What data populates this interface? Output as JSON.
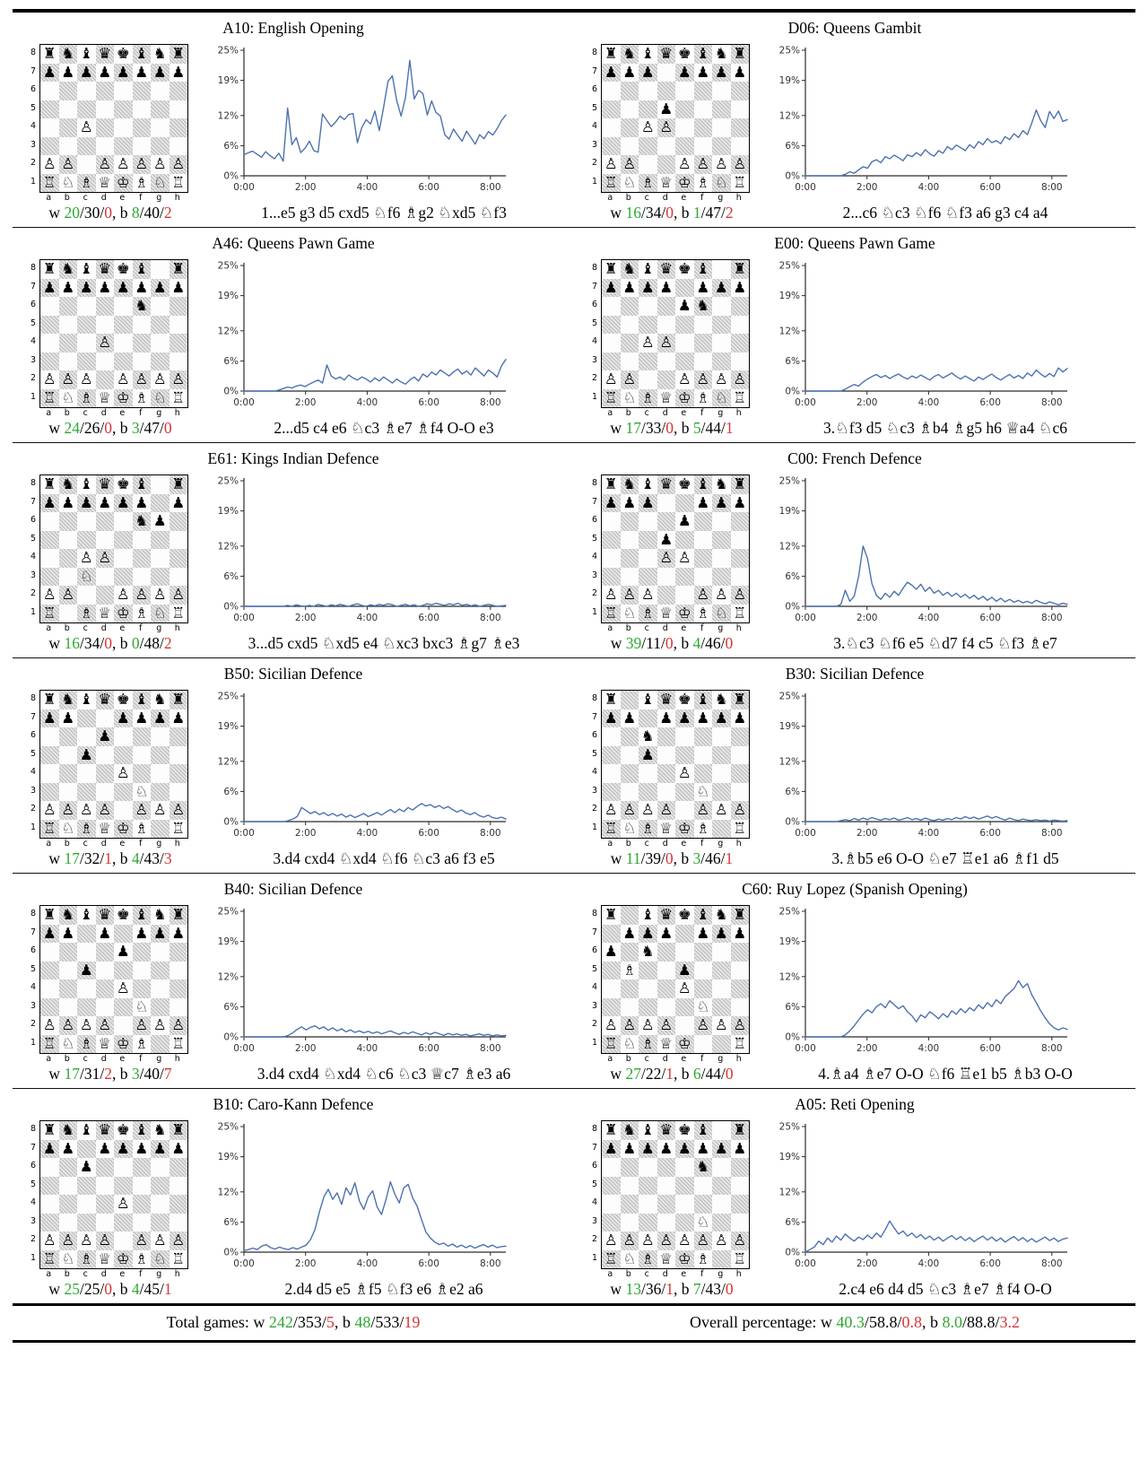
{
  "colors": {
    "win": "#2fa832",
    "loss": "#d83434",
    "line": "#4d72b0",
    "axis": "#2b2b2b"
  },
  "stats_format": {
    "w_prefix": "w ",
    "b_prefix": ", b ",
    "sep": "/"
  },
  "axis": {
    "y_tick_labels": [
      "0%",
      "6%",
      "12%",
      "19%",
      "25%"
    ],
    "y_tick_values": [
      0,
      6,
      12,
      19,
      25
    ],
    "x_tick_labels": [
      "0:00",
      "2:00",
      "4:00",
      "6:00",
      "8:00"
    ],
    "x_tick_values": [
      0,
      120,
      240,
      360,
      480
    ],
    "x_max": 510,
    "y_max": 25
  },
  "panels": [
    {
      "title": "A10: English Opening",
      "fen": "rnbqkbnr/pppppppp/8/8/2P5/8/PP1PPPPP/RNBQKBNR",
      "stats": {
        "w": [
          "20",
          "30",
          "0"
        ],
        "b": [
          "8",
          "40",
          "2"
        ]
      },
      "moves": "1...e5 g3 d5 cxd5 ♘f6 ♗g2 ♘xd5 ♘f3"
    },
    {
      "title": "D06: Queens Gambit",
      "fen": "rnbqkbnr/ppp1pppp/8/3p4/2PP4/8/PP2PPPP/RNBQKBNR",
      "stats": {
        "w": [
          "16",
          "34",
          "0"
        ],
        "b": [
          "1",
          "47",
          "2"
        ]
      },
      "moves": "2...c6 ♘c3 ♘f6 ♘f3 a6 g3 c4 a4"
    },
    {
      "title": "A46: Queens Pawn Game",
      "fen": "rnbqkb1r/pppppppp/5n2/8/3P4/8/PPP1PPPP/RNBQKBNR",
      "stats": {
        "w": [
          "24",
          "26",
          "0"
        ],
        "b": [
          "3",
          "47",
          "0"
        ]
      },
      "moves": "2...d5 c4 e6 ♘c3 ♗e7 ♗f4 O-O e3"
    },
    {
      "title": "E00: Queens Pawn Game",
      "fen": "rnbqkb1r/pppp1ppp/4pn2/8/2PP4/8/PP2PPPP/RNBQKBNR",
      "stats": {
        "w": [
          "17",
          "33",
          "0"
        ],
        "b": [
          "5",
          "44",
          "1"
        ]
      },
      "moves": "3.♘f3 d5 ♘c3 ♗b4 ♗g5 h6 ♕a4 ♘c6"
    },
    {
      "title": "E61: Kings Indian Defence",
      "fen": "rnbqkb1r/pppppp1p/5np1/8/2PP4/2N5/PP2PPPP/R1BQKBNR",
      "stats": {
        "w": [
          "16",
          "34",
          "0"
        ],
        "b": [
          "0",
          "48",
          "2"
        ]
      },
      "moves": "3...d5 cxd5 ♘xd5 e4 ♘xc3 bxc3 ♗g7 ♗e3"
    },
    {
      "title": "C00: French Defence",
      "fen": "rnbqkbnr/ppp2ppp/4p3/3p4/3PP3/8/PPP2PPP/RNBQKBNR",
      "stats": {
        "w": [
          "39",
          "11",
          "0"
        ],
        "b": [
          "4",
          "46",
          "0"
        ]
      },
      "moves": "3.♘c3 ♘f6 e5 ♘d7 f4 c5 ♘f3 ♗e7"
    },
    {
      "title": "B50: Sicilian Defence",
      "fen": "rnbqkbnr/pp2pppp/3p4/2p5/4P3/5N2/PPPP1PPP/RNBQKB1R",
      "stats": {
        "w": [
          "17",
          "32",
          "1"
        ],
        "b": [
          "4",
          "43",
          "3"
        ]
      },
      "moves": "3.d4 cxd4 ♘xd4 ♘f6 ♘c3 a6 f3 e5"
    },
    {
      "title": "B30: Sicilian Defence",
      "fen": "r1bqkbnr/pp1ppppp/2n5/2p5/4P3/5N2/PPPP1PPP/RNBQKB1R",
      "stats": {
        "w": [
          "11",
          "39",
          "0"
        ],
        "b": [
          "3",
          "46",
          "1"
        ]
      },
      "moves": "3.♗b5 e6 O-O ♘e7 ♖e1 a6 ♗f1 d5"
    },
    {
      "title": "B40: Sicilian Defence",
      "fen": "rnbqkbnr/pp1p1ppp/4p3/2p5/4P3/5N2/PPPP1PPP/RNBQKB1R",
      "stats": {
        "w": [
          "17",
          "31",
          "2"
        ],
        "b": [
          "3",
          "40",
          "7"
        ]
      },
      "moves": "3.d4 cxd4 ♘xd4 ♘c6 ♘c3 ♕c7 ♗e3 a6"
    },
    {
      "title": "C60: Ruy Lopez (Spanish Opening)",
      "fen": "r1bqkbnr/1ppp1ppp/p1n5/1B2p3/4P3/5N2/PPPP1PPP/RNBQK2R",
      "stats": {
        "w": [
          "27",
          "22",
          "1"
        ],
        "b": [
          "6",
          "44",
          "0"
        ]
      },
      "moves": "4.♗a4 ♗e7 O-O ♘f6 ♖e1 b5 ♗b3 O-O"
    },
    {
      "title": "B10: Caro-Kann Defence",
      "fen": "rnbqkbnr/pp1ppppp/2p5/8/4P3/8/PPPP1PPP/RNBQKBNR",
      "stats": {
        "w": [
          "25",
          "25",
          "0"
        ],
        "b": [
          "4",
          "45",
          "1"
        ]
      },
      "moves": "2.d4 d5 e5 ♗f5 ♘f3 e6 ♗e2 a6"
    },
    {
      "title": "A05: Reti Opening",
      "fen": "rnbqkb1r/pppppppp/5n2/8/8/5N2/PPPPPPPP/RNBQKB1R",
      "stats": {
        "w": [
          "13",
          "36",
          "1"
        ],
        "b": [
          "7",
          "43",
          "0"
        ]
      },
      "moves": "2.c4 e6 d4 d5 ♘c3 ♗e7 ♗f4 O-O"
    }
  ],
  "chart_data": [
    {
      "type": "line",
      "title": "A10: English Opening",
      "ylim": [
        0,
        25
      ],
      "x_range_minutes": [
        0,
        510
      ],
      "values": [
        4.2,
        4.6,
        4.9,
        4.3,
        3.7,
        4.8,
        4.0,
        3.4,
        4.5,
        2.9,
        13.5,
        6.2,
        7.6,
        4.6,
        5.5,
        6.9,
        5.0,
        4.7,
        12.3,
        11.0,
        9.8,
        10.7,
        11.9,
        11.2,
        12.2,
        12.4,
        6.6,
        9.6,
        11.2,
        10.3,
        12.9,
        9.0,
        13.6,
        18.8,
        19.9,
        15.0,
        11.9,
        15.6,
        23.0,
        15.3,
        17.0,
        16.4,
        12.1,
        14.9,
        12.6,
        11.9,
        8.2,
        7.3,
        9.3,
        8.0,
        6.9,
        8.9,
        7.6,
        6.3,
        8.2,
        7.4,
        8.8,
        8.1,
        9.4,
        11.0,
        12.1
      ]
    },
    {
      "type": "line",
      "title": "D06: Queens Gambit",
      "ylim": [
        0,
        25
      ],
      "x_range_minutes": [
        0,
        510
      ],
      "values": [
        0,
        0,
        0,
        0,
        0,
        0,
        0,
        0,
        0,
        0.3,
        0.8,
        0.5,
        1.2,
        1.8,
        1.5,
        2.8,
        3.2,
        2.6,
        3.8,
        3.4,
        4.1,
        3.6,
        3.0,
        4.2,
        3.8,
        4.6,
        4.0,
        5.2,
        4.4,
        3.9,
        5.0,
        4.5,
        5.8,
        5.2,
        6.1,
        5.6,
        5.0,
        6.2,
        5.5,
        6.8,
        6.2,
        7.4,
        6.6,
        7.0,
        6.4,
        7.8,
        7.2,
        8.4,
        7.6,
        9.0,
        8.2,
        10.5,
        13.1,
        11.0,
        9.6,
        12.8,
        11.4,
        12.9,
        10.8,
        11.2
      ]
    },
    {
      "type": "line",
      "title": "A46: Queens Pawn Game",
      "ylim": [
        0,
        25
      ],
      "x_range_minutes": [
        0,
        510
      ],
      "values": [
        0,
        0,
        0,
        0,
        0,
        0,
        0,
        0,
        0.2,
        0.5,
        0.8,
        0.6,
        1.0,
        1.2,
        0.9,
        1.4,
        1.8,
        2.2,
        1.6,
        5.2,
        3.0,
        2.4,
        2.8,
        2.2,
        3.2,
        2.6,
        2.2,
        2.8,
        2.4,
        1.8,
        2.6,
        2.0,
        2.8,
        2.2,
        1.6,
        2.4,
        1.8,
        1.4,
        2.2,
        2.8,
        2.0,
        3.4,
        2.8,
        3.8,
        3.2,
        4.2,
        3.6,
        3.0,
        3.8,
        4.4,
        3.4,
        4.0,
        3.2,
        4.6,
        3.8,
        3.0,
        4.2,
        3.6,
        2.8,
        5.0,
        6.3
      ]
    },
    {
      "type": "line",
      "title": "E00: Queens Pawn Game",
      "ylim": [
        0,
        25
      ],
      "x_range_minutes": [
        0,
        510
      ],
      "values": [
        0,
        0,
        0,
        0,
        0,
        0,
        0,
        0,
        0,
        0.4,
        0.9,
        1.3,
        1.0,
        1.8,
        2.4,
        2.9,
        3.3,
        2.7,
        3.1,
        2.5,
        3.0,
        3.4,
        2.8,
        2.4,
        3.0,
        2.6,
        3.2,
        2.7,
        2.2,
        2.9,
        3.3,
        2.6,
        3.1,
        3.6,
        2.9,
        2.4,
        3.0,
        2.5,
        2.0,
        2.8,
        2.3,
        2.9,
        3.4,
        2.7,
        2.2,
        2.8,
        3.3,
        2.6,
        3.1,
        2.5,
        3.6,
        3.0,
        4.2,
        3.4,
        2.8,
        3.5,
        2.9,
        4.6,
        3.8,
        4.5
      ]
    },
    {
      "type": "line",
      "title": "E61: Kings Indian Defence",
      "ylim": [
        0,
        25
      ],
      "x_range_minutes": [
        0,
        510
      ],
      "values": [
        0,
        0,
        0,
        0,
        0,
        0,
        0,
        0,
        0,
        0,
        0.2,
        0,
        0.3,
        0.1,
        0,
        0.2,
        0,
        0.4,
        0.2,
        0,
        0.3,
        0.1,
        0.4,
        0.2,
        0,
        0.3,
        0.5,
        0.2,
        0,
        0.3,
        0.1,
        0.4,
        0.2,
        0.5,
        0.3,
        0,
        0.2,
        0.4,
        0.1,
        0.3,
        0,
        0.2,
        0.5,
        0.3,
        0.6,
        0.4,
        0.2,
        0.5,
        0.3,
        0.6,
        0.2,
        0.4,
        0.1,
        0.3,
        0,
        0.2,
        0.4,
        0.2,
        0,
        0.1,
        0.2
      ]
    },
    {
      "type": "line",
      "title": "C00: French Defence",
      "ylim": [
        0,
        25
      ],
      "x_range_minutes": [
        0,
        510
      ],
      "values": [
        0,
        0,
        0,
        0,
        0,
        0,
        0,
        0,
        0.4,
        3.2,
        1.0,
        2.0,
        6.0,
        12.0,
        9.5,
        4.5,
        2.2,
        1.4,
        2.6,
        1.8,
        3.0,
        2.2,
        3.6,
        4.8,
        4.2,
        3.4,
        4.4,
        3.0,
        3.8,
        2.6,
        3.2,
        2.2,
        2.8,
        2.0,
        2.6,
        1.8,
        2.4,
        1.6,
        2.2,
        1.4,
        2.0,
        1.2,
        1.8,
        1.0,
        1.6,
        0.9,
        1.4,
        0.8,
        1.2,
        0.7,
        1.0,
        0.6,
        1.2,
        0.8,
        0.5,
        0.9,
        0.6,
        0.3,
        0.6,
        0.4
      ]
    },
    {
      "type": "line",
      "title": "B50: Sicilian Defence",
      "ylim": [
        0,
        25
      ],
      "x_range_minutes": [
        0,
        510
      ],
      "values": [
        0,
        0,
        0,
        0,
        0,
        0,
        0,
        0,
        0,
        0,
        0.2,
        0.5,
        1.0,
        2.8,
        2.2,
        1.6,
        2.0,
        1.4,
        1.8,
        1.2,
        1.6,
        1.1,
        1.5,
        0.9,
        1.3,
        0.8,
        1.2,
        1.6,
        1.0,
        1.4,
        1.8,
        1.3,
        1.9,
        2.4,
        1.8,
        2.5,
        2.0,
        2.8,
        2.3,
        3.0,
        3.6,
        3.1,
        3.4,
        2.8,
        3.2,
        2.6,
        3.0,
        2.4,
        1.9,
        2.3,
        1.7,
        1.4,
        1.8,
        1.2,
        0.9,
        1.3,
        0.8,
        0.6,
        0.9,
        0.5
      ]
    },
    {
      "type": "line",
      "title": "B30: Sicilian Defence",
      "ylim": [
        0,
        25
      ],
      "x_range_minutes": [
        0,
        510
      ],
      "values": [
        0,
        0,
        0,
        0,
        0,
        0,
        0,
        0,
        0.2,
        0.4,
        0.2,
        0.6,
        0.3,
        0.7,
        0.4,
        0.8,
        0.5,
        0.3,
        0.6,
        0.4,
        0.7,
        0.3,
        0.5,
        0.8,
        0.4,
        0.6,
        0.3,
        0.7,
        0.4,
        0.2,
        0.5,
        0.3,
        0.6,
        0.4,
        0.8,
        0.5,
        1.0,
        0.6,
        0.9,
        0.5,
        0.8,
        1.1,
        0.7,
        1.0,
        0.6,
        0.3,
        0.7,
        0.4,
        0.2,
        0.5,
        0.3,
        0.2,
        0.4,
        0.2,
        0.3,
        0.1,
        0.3,
        0.2,
        0.1,
        0.2
      ]
    },
    {
      "type": "line",
      "title": "B40: Sicilian Defence",
      "ylim": [
        0,
        25
      ],
      "x_range_minutes": [
        0,
        510
      ],
      "values": [
        0,
        0,
        0,
        0,
        0,
        0,
        0,
        0,
        0,
        0,
        0.3,
        0.8,
        1.5,
        2.0,
        1.4,
        1.9,
        2.2,
        1.6,
        2.0,
        1.3,
        1.8,
        1.2,
        1.6,
        1.0,
        1.4,
        0.9,
        1.2,
        0.8,
        1.1,
        0.7,
        1.0,
        0.6,
        0.9,
        1.2,
        0.8,
        0.5,
        0.9,
        0.6,
        1.0,
        0.7,
        0.4,
        0.8,
        0.5,
        0.9,
        0.6,
        0.3,
        0.7,
        0.4,
        0.6,
        0.3,
        0.5,
        0.2,
        0.4,
        0.6,
        0.3,
        0.5,
        0.2,
        0.4,
        0.2,
        0.3
      ]
    },
    {
      "type": "line",
      "title": "C60: Ruy Lopez (Spanish Opening)",
      "ylim": [
        0,
        25
      ],
      "x_range_minutes": [
        0,
        510
      ],
      "values": [
        0,
        0,
        0,
        0,
        0,
        0,
        0,
        0,
        0,
        0.4,
        1.2,
        2.2,
        3.4,
        4.5,
        5.4,
        4.8,
        6.0,
        6.6,
        5.8,
        7.2,
        6.4,
        5.6,
        6.2,
        5.0,
        4.2,
        3.0,
        4.4,
        3.8,
        5.0,
        4.4,
        3.6,
        4.6,
        3.9,
        5.2,
        4.5,
        5.6,
        4.8,
        5.8,
        5.2,
        6.4,
        5.6,
        6.8,
        6.0,
        7.4,
        6.6,
        8.0,
        8.8,
        9.6,
        11.2,
        9.8,
        10.6,
        8.4,
        6.8,
        5.2,
        3.8,
        2.6,
        1.8,
        1.4,
        1.8,
        1.5
      ]
    },
    {
      "type": "line",
      "title": "B10: Caro-Kann Defence",
      "ylim": [
        0,
        25
      ],
      "x_range_minutes": [
        0,
        510
      ],
      "values": [
        0.3,
        0.5,
        0.8,
        0.5,
        1.2,
        1.5,
        0.9,
        0.6,
        1.0,
        0.7,
        0.5,
        0.9,
        0.6,
        1.0,
        1.4,
        2.5,
        4.5,
        8.0,
        11.0,
        12.5,
        10.5,
        11.8,
        9.5,
        12.8,
        11.4,
        13.8,
        10.2,
        8.5,
        11.0,
        12.2,
        9.0,
        7.5,
        10.5,
        14.0,
        11.5,
        9.8,
        12.8,
        13.5,
        10.8,
        9.2,
        6.5,
        4.0,
        2.8,
        2.0,
        1.5,
        1.8,
        1.2,
        1.6,
        1.0,
        1.4,
        0.9,
        1.3,
        0.8,
        1.2,
        1.5,
        1.0,
        1.4,
        0.9,
        1.1,
        1.2
      ]
    },
    {
      "type": "line",
      "title": "A05: Reti Opening",
      "ylim": [
        0,
        25
      ],
      "x_range_minutes": [
        0,
        510
      ],
      "values": [
        0,
        0.5,
        1.0,
        2.2,
        1.5,
        2.8,
        2.0,
        3.2,
        2.4,
        3.6,
        2.8,
        2.2,
        3.0,
        2.5,
        3.4,
        2.7,
        3.8,
        3.0,
        4.5,
        6.2,
        4.8,
        3.6,
        4.2,
        3.2,
        3.8,
        2.9,
        3.5,
        2.6,
        3.2,
        2.4,
        3.0,
        2.2,
        2.8,
        3.3,
        2.5,
        3.1,
        2.3,
        2.9,
        2.1,
        2.7,
        3.2,
        2.4,
        3.0,
        2.2,
        2.8,
        2.0,
        2.6,
        3.1,
        2.3,
        2.9,
        2.1,
        2.7,
        2.0,
        2.5,
        3.0,
        2.3,
        2.8,
        2.1,
        2.6,
        2.8
      ]
    }
  ],
  "footer": {
    "left_label": "Total games: ",
    "left_w": [
      "242",
      "353",
      "5"
    ],
    "left_b": [
      "48",
      "533",
      "19"
    ],
    "right_label": "Overall percentage: ",
    "right_w": [
      "40.3",
      "58.8",
      "0.8"
    ],
    "right_b": [
      "8.0",
      "88.8",
      "3.2"
    ]
  },
  "board": {
    "files": [
      "a",
      "b",
      "c",
      "d",
      "e",
      "f",
      "g",
      "h"
    ],
    "ranks": [
      "8",
      "7",
      "6",
      "5",
      "4",
      "3",
      "2",
      "1"
    ]
  }
}
